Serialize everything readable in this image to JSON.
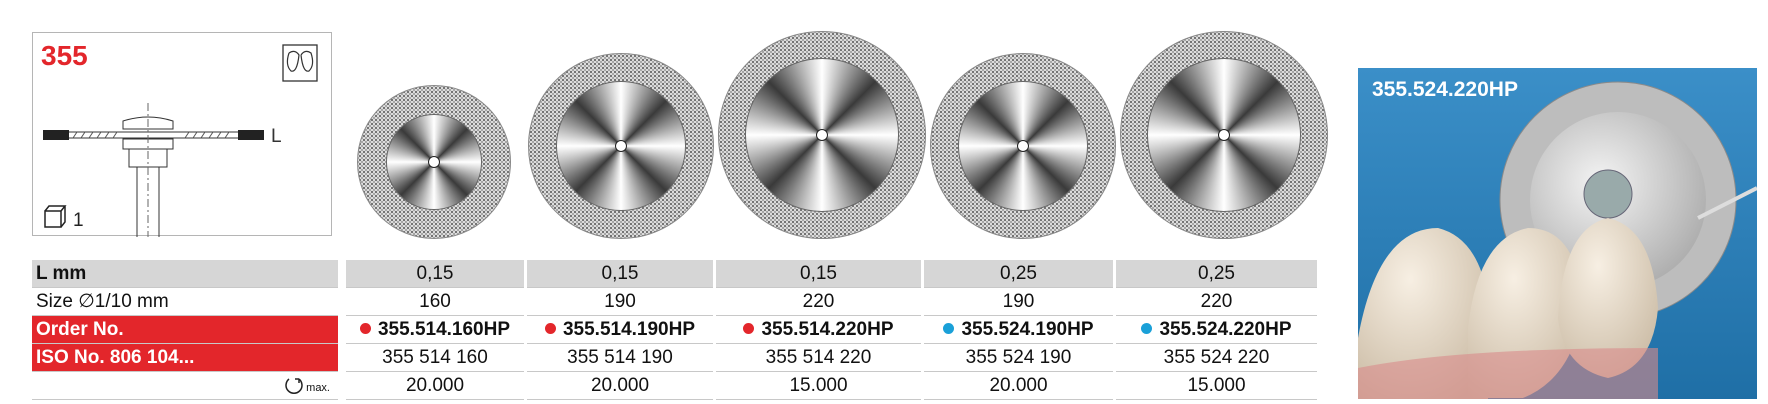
{
  "product": {
    "number": "355",
    "dimension_label": "L",
    "pack_quantity": "1"
  },
  "table": {
    "row_labels": [
      "L mm",
      "Size ∅1/10 mm",
      "Order No.",
      "ISO No. 806 104...",
      "max."
    ],
    "rows": [
      [
        "0,15",
        "0,15",
        "0,15",
        "0,25",
        "0,25"
      ],
      [
        "160",
        "190",
        "220",
        "190",
        "220"
      ],
      [
        "355.514.160HP",
        "355.514.190HP",
        "355.514.220HP",
        "355.524.190HP",
        "355.524.220HP"
      ],
      [
        "355 514 160",
        "355 514 190",
        "355 514 220",
        "355 524 190",
        "355 524 220"
      ],
      [
        "20.000",
        "20.000",
        "15.000",
        "20.000",
        "15.000"
      ]
    ]
  },
  "photo": {
    "label": "355.524.220HP"
  }
}
